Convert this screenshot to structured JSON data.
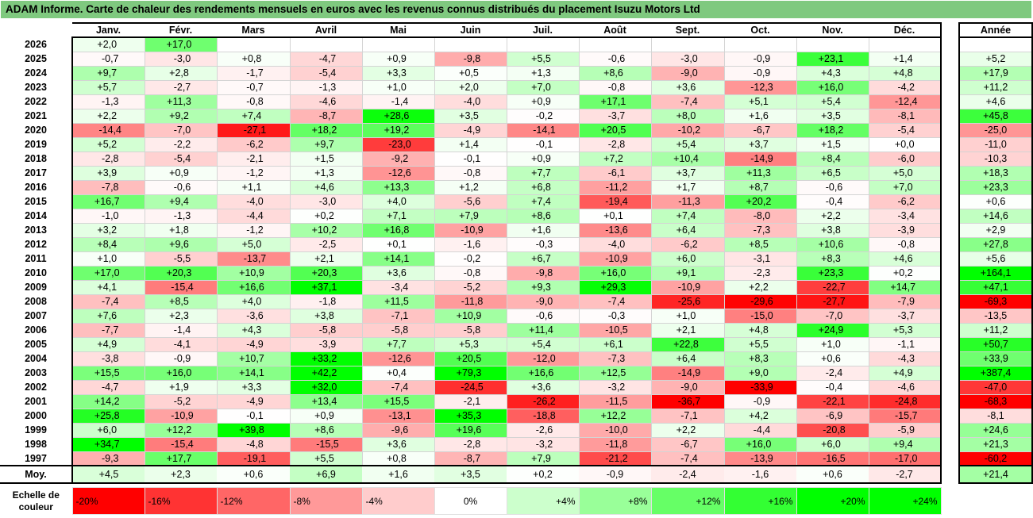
{
  "title": "ADAM Informe. Carte de chaleur des rendements mensuels en euros avec les revenus connus distribués du placement Isuzu Motors Ltd",
  "chart_data": {
    "type": "heatmap",
    "months": [
      "Janv.",
      "Févr.",
      "Mars",
      "Avril",
      "Mai",
      "Juin",
      "Juil.",
      "Août",
      "Sept.",
      "Oct.",
      "Nov.",
      "Déc."
    ],
    "year_header": "Année",
    "rows": [
      {
        "year": "2026",
        "values": [
          "+2,0",
          "+17,0",
          "",
          "",
          "",
          "",
          "",
          "",
          "",
          "",
          "",
          ""
        ],
        "annual": ""
      },
      {
        "year": "2025",
        "values": [
          "-0,7",
          "-3,0",
          "+0,8",
          "-4,7",
          "+0,9",
          "-9,8",
          "+5,5",
          "-0,6",
          "-3,0",
          "-0,9",
          "+23,1",
          "+1,4"
        ],
        "annual": "+5,2"
      },
      {
        "year": "2024",
        "values": [
          "+9,7",
          "+2,8",
          "-1,7",
          "-5,4",
          "+3,3",
          "+0,5",
          "+1,3",
          "+8,6",
          "-9,0",
          "-0,9",
          "+4,3",
          "+4,8"
        ],
        "annual": "+17,9"
      },
      {
        "year": "2023",
        "values": [
          "+5,7",
          "-2,7",
          "-0,7",
          "-1,3",
          "+1,0",
          "+2,0",
          "+7,0",
          "-0,8",
          "+3,6",
          "-12,3",
          "+16,0",
          "-4,2"
        ],
        "annual": "+11,2"
      },
      {
        "year": "2022",
        "values": [
          "-1,3",
          "+11,3",
          "-0,8",
          "-4,6",
          "-1,4",
          "-4,0",
          "+0,9",
          "+17,1",
          "-7,4",
          "+5,1",
          "+5,4",
          "-12,4"
        ],
        "annual": "+4,6"
      },
      {
        "year": "2021",
        "values": [
          "+2,2",
          "+9,2",
          "+7,4",
          "-8,7",
          "+28,6",
          "+3,5",
          "-0,2",
          "-3,7",
          "+8,0",
          "+1,6",
          "+3,5",
          "-8,1"
        ],
        "annual": "+45,8"
      },
      {
        "year": "2020",
        "values": [
          "-14,4",
          "-7,0",
          "-27,1",
          "+18,2",
          "+19,2",
          "-4,9",
          "-14,1",
          "+20,5",
          "-10,2",
          "-6,7",
          "+18,2",
          "-5,4"
        ],
        "annual": "-25,0"
      },
      {
        "year": "2019",
        "values": [
          "+5,2",
          "-2,2",
          "-6,2",
          "+9,7",
          "-23,0",
          "+1,4",
          "-0,1",
          "-2,8",
          "+5,4",
          "+3,7",
          "+1,5",
          "+0,0"
        ],
        "annual": "-11,0"
      },
      {
        "year": "2018",
        "values": [
          "-2,8",
          "-5,4",
          "-2,1",
          "+1,5",
          "-9,2",
          "-0,1",
          "+0,9",
          "+7,2",
          "+10,4",
          "-14,9",
          "+8,4",
          "-6,0"
        ],
        "annual": "-10,3"
      },
      {
        "year": "2017",
        "values": [
          "+3,9",
          "+0,9",
          "-1,2",
          "+1,3",
          "-12,6",
          "-0,8",
          "+7,7",
          "-6,1",
          "+3,7",
          "+11,3",
          "+6,5",
          "+5,0"
        ],
        "annual": "+18,3"
      },
      {
        "year": "2016",
        "values": [
          "-7,8",
          "-0,6",
          "+1,1",
          "+4,6",
          "+13,3",
          "+1,2",
          "+6,8",
          "-11,2",
          "+1,7",
          "+8,7",
          "-0,6",
          "+7,0"
        ],
        "annual": "+23,3"
      },
      {
        "year": "2015",
        "values": [
          "+16,7",
          "+9,4",
          "-4,0",
          "-3,0",
          "+4,0",
          "-5,6",
          "+7,4",
          "-19,4",
          "-11,3",
          "+20,2",
          "-0,4",
          "-6,2"
        ],
        "annual": "+0,6"
      },
      {
        "year": "2014",
        "values": [
          "-1,0",
          "-1,3",
          "-4,4",
          "+0,2",
          "+7,1",
          "+7,9",
          "+8,6",
          "+0,1",
          "+7,4",
          "-8,0",
          "+2,2",
          "-3,4"
        ],
        "annual": "+14,6"
      },
      {
        "year": "2013",
        "values": [
          "+3,2",
          "+1,8",
          "-1,2",
          "+10,2",
          "+16,8",
          "-10,9",
          "+1,6",
          "-13,6",
          "+6,4",
          "-7,3",
          "+3,8",
          "-3,9"
        ],
        "annual": "+2,9"
      },
      {
        "year": "2012",
        "values": [
          "+8,4",
          "+9,6",
          "+5,0",
          "-2,5",
          "+0,1",
          "-1,6",
          "-0,3",
          "-4,0",
          "-6,2",
          "+8,5",
          "+10,6",
          "-0,8"
        ],
        "annual": "+27,8"
      },
      {
        "year": "2011",
        "values": [
          "+1,0",
          "-5,5",
          "-13,7",
          "+2,1",
          "+14,1",
          "-0,2",
          "+6,7",
          "-10,9",
          "+6,0",
          "-3,1",
          "+8,3",
          "+4,6"
        ],
        "annual": "+5,6"
      },
      {
        "year": "2010",
        "values": [
          "+17,0",
          "+20,3",
          "+10,9",
          "+20,3",
          "+3,6",
          "-0,8",
          "-9,8",
          "+16,0",
          "+9,1",
          "-2,3",
          "+23,3",
          "+0,2"
        ],
        "annual": "+164,1"
      },
      {
        "year": "2009",
        "values": [
          "+4,1",
          "-15,4",
          "+16,6",
          "+37,1",
          "-3,4",
          "-5,2",
          "+9,3",
          "+29,3",
          "-10,9",
          "+2,2",
          "-22,7",
          "+14,7"
        ],
        "annual": "+47,1"
      },
      {
        "year": "2008",
        "values": [
          "-7,4",
          "+8,5",
          "+4,0",
          "-1,8",
          "+11,5",
          "-11,8",
          "-9,0",
          "-7,4",
          "-25,6",
          "-29,6",
          "-27,7",
          "-7,9"
        ],
        "annual": "-69,3"
      },
      {
        "year": "2007",
        "values": [
          "+7,6",
          "+2,3",
          "-3,6",
          "+3,8",
          "-7,1",
          "+10,9",
          "-0,6",
          "-0,3",
          "+1,0",
          "-15,0",
          "-7,0",
          "-3,7"
        ],
        "annual": "-13,5"
      },
      {
        "year": "2006",
        "values": [
          "-7,7",
          "-1,4",
          "+4,3",
          "-5,8",
          "-5,8",
          "-5,8",
          "+11,4",
          "-10,5",
          "+2,1",
          "+4,8",
          "+24,9",
          "+5,3"
        ],
        "annual": "+11,2"
      },
      {
        "year": "2005",
        "values": [
          "+4,9",
          "-4,1",
          "-4,9",
          "-3,9",
          "+7,7",
          "+5,3",
          "+5,4",
          "+6,1",
          "+22,8",
          "+5,5",
          "+1,0",
          "-1,1"
        ],
        "annual": "+50,7"
      },
      {
        "year": "2004",
        "values": [
          "-3,8",
          "-0,9",
          "+10,7",
          "+33,2",
          "-12,6",
          "+20,5",
          "-12,0",
          "-7,3",
          "+6,4",
          "+8,3",
          "+0,6",
          "-4,3"
        ],
        "annual": "+33,9"
      },
      {
        "year": "2003",
        "values": [
          "+15,5",
          "+16,0",
          "+14,1",
          "+42,2",
          "+0,4",
          "+79,3",
          "+16,6",
          "+12,5",
          "-14,9",
          "+9,0",
          "-2,4",
          "+4,9"
        ],
        "annual": "+387,4"
      },
      {
        "year": "2002",
        "values": [
          "-4,7",
          "+1,9",
          "+3,3",
          "+32,0",
          "-7,4",
          "-24,5",
          "+3,6",
          "-3,2",
          "-9,0",
          "-33,9",
          "-0,4",
          "-4,6"
        ],
        "annual": "-47,0"
      },
      {
        "year": "2001",
        "values": [
          "+14,2",
          "-5,2",
          "-4,9",
          "+13,4",
          "+15,5",
          "-2,1",
          "-26,2",
          "-11,5",
          "-36,7",
          "-0,9",
          "-22,1",
          "-24,8"
        ],
        "annual": "-68,3"
      },
      {
        "year": "2000",
        "values": [
          "+25,8",
          "-10,9",
          "-0,1",
          "+0,9",
          "-13,1",
          "+35,3",
          "-18,8",
          "+12,2",
          "-7,1",
          "+4,2",
          "-6,9",
          "-15,7"
        ],
        "annual": "-8,1"
      },
      {
        "year": "1999",
        "values": [
          "+6,0",
          "+12,2",
          "+39,8",
          "+8,6",
          "-9,6",
          "+19,6",
          "-2,6",
          "-10,0",
          "+2,2",
          "-4,4",
          "-20,8",
          "-5,9"
        ],
        "annual": "+24,6"
      },
      {
        "year": "1998",
        "values": [
          "+34,7",
          "-15,4",
          "-4,8",
          "-15,5",
          "+3,6",
          "-2,8",
          "-3,2",
          "-11,8",
          "-6,7",
          "+16,0",
          "+6,0",
          "+9,4"
        ],
        "annual": "+21,3"
      },
      {
        "year": "1997",
        "values": [
          "-9,3",
          "+17,7",
          "-19,1",
          "+5,5",
          "+0,8",
          "-8,7",
          "+7,9",
          "-21,2",
          "-7,4",
          "-13,9",
          "-16,5",
          "-17,0"
        ],
        "annual": "-60,2"
      }
    ],
    "average": {
      "label": "Moy.",
      "values": [
        "+4,5",
        "+2,3",
        "+0,6",
        "+6,9",
        "+1,6",
        "+3,5",
        "+0,2",
        "-0,9",
        "-2,4",
        "-1,6",
        "+0,6",
        "-2,7"
      ],
      "annual": "+21,4"
    },
    "scale": {
      "label": "Echelle de couleur",
      "steps": [
        "-20%",
        "-16%",
        "-12%",
        "-8%",
        "-4%",
        "0%",
        "+4%",
        "+8%",
        "+12%",
        "+16%",
        "+20%",
        "+24%"
      ]
    },
    "colors": {
      "negative": "#ff0000",
      "neutral": "#ffffff",
      "positive": "#00ff00"
    }
  }
}
